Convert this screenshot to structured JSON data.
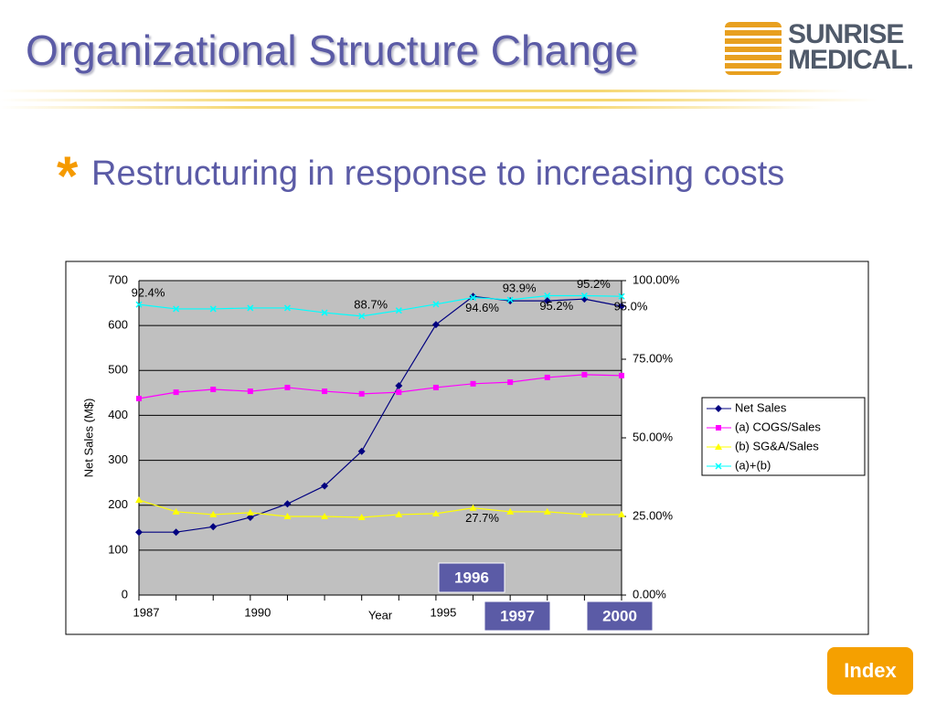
{
  "title": "Organizational Structure Change",
  "logo": [
    "SUNRISE",
    "MEDICAL."
  ],
  "bullet": "Restructuring in response to increasing costs",
  "button": "Index",
  "chart_data": {
    "type": "line",
    "xlabel": "Year",
    "ylabel": "Net Sales (M$)",
    "x": [
      1987,
      1988,
      1989,
      1990,
      1991,
      1992,
      1993,
      1994,
      1995,
      1996,
      1997,
      1998,
      1999,
      2000
    ],
    "xlim": [
      1987,
      2000
    ],
    "xticks": [
      1987,
      1990,
      1995
    ],
    "ylim": [
      0,
      700
    ],
    "yticks": [
      0,
      100,
      200,
      300,
      400,
      500,
      600,
      700
    ],
    "y2lim": [
      0,
      100
    ],
    "y2ticks": [
      {
        "value": 0,
        "label": "0.00%"
      },
      {
        "value": 25,
        "label": "25.00%"
      },
      {
        "value": 50,
        "label": "50.00%"
      },
      {
        "value": 75,
        "label": "75.00%"
      },
      {
        "value": 100,
        "label": "100.00%"
      }
    ],
    "grid": true,
    "series": [
      {
        "name": "Net Sales",
        "color": "#000080",
        "marker": "diamond",
        "values": [
          140,
          140,
          152,
          173,
          203,
          243,
          320,
          466,
          602,
          665,
          655,
          655,
          659,
          643
        ]
      },
      {
        "name": "(a) COGS/Sales",
        "color": "#ff00ff",
        "marker": "square",
        "axis": "y2",
        "values": [
          62.5,
          64.5,
          65.4,
          64.8,
          66.0,
          64.8,
          64.0,
          64.5,
          66.0,
          67.2,
          67.7,
          69.2,
          70.1,
          69.8
        ]
      },
      {
        "name": "(b) SG&A/Sales",
        "color": "#ffff00",
        "marker": "triangle",
        "axis": "y2",
        "values": [
          30.2,
          26.5,
          25.6,
          26.2,
          25.0,
          25.0,
          24.7,
          25.6,
          25.9,
          27.7,
          26.5,
          26.5,
          25.6,
          25.6
        ],
        "value_labels": [
          null,
          null,
          null,
          null,
          null,
          null,
          null,
          null,
          null,
          "27.7%",
          null,
          null,
          null,
          null
        ]
      },
      {
        "name": "(a)+(b)",
        "color": "#00ffff",
        "marker": "x",
        "axis": "y2",
        "values": [
          92.4,
          91.0,
          91.0,
          91.3,
          91.3,
          89.8,
          88.7,
          90.5,
          92.5,
          94.6,
          93.9,
          95.2,
          95.2,
          95.0
        ],
        "value_labels": [
          "92.4%",
          null,
          null,
          null,
          null,
          null,
          "88.7%",
          null,
          null,
          "94.6%",
          "93.9%",
          "95.2%",
          "95.2%",
          "95.0%"
        ]
      }
    ],
    "annotations": [
      "1996",
      "1997",
      "2000"
    ]
  }
}
